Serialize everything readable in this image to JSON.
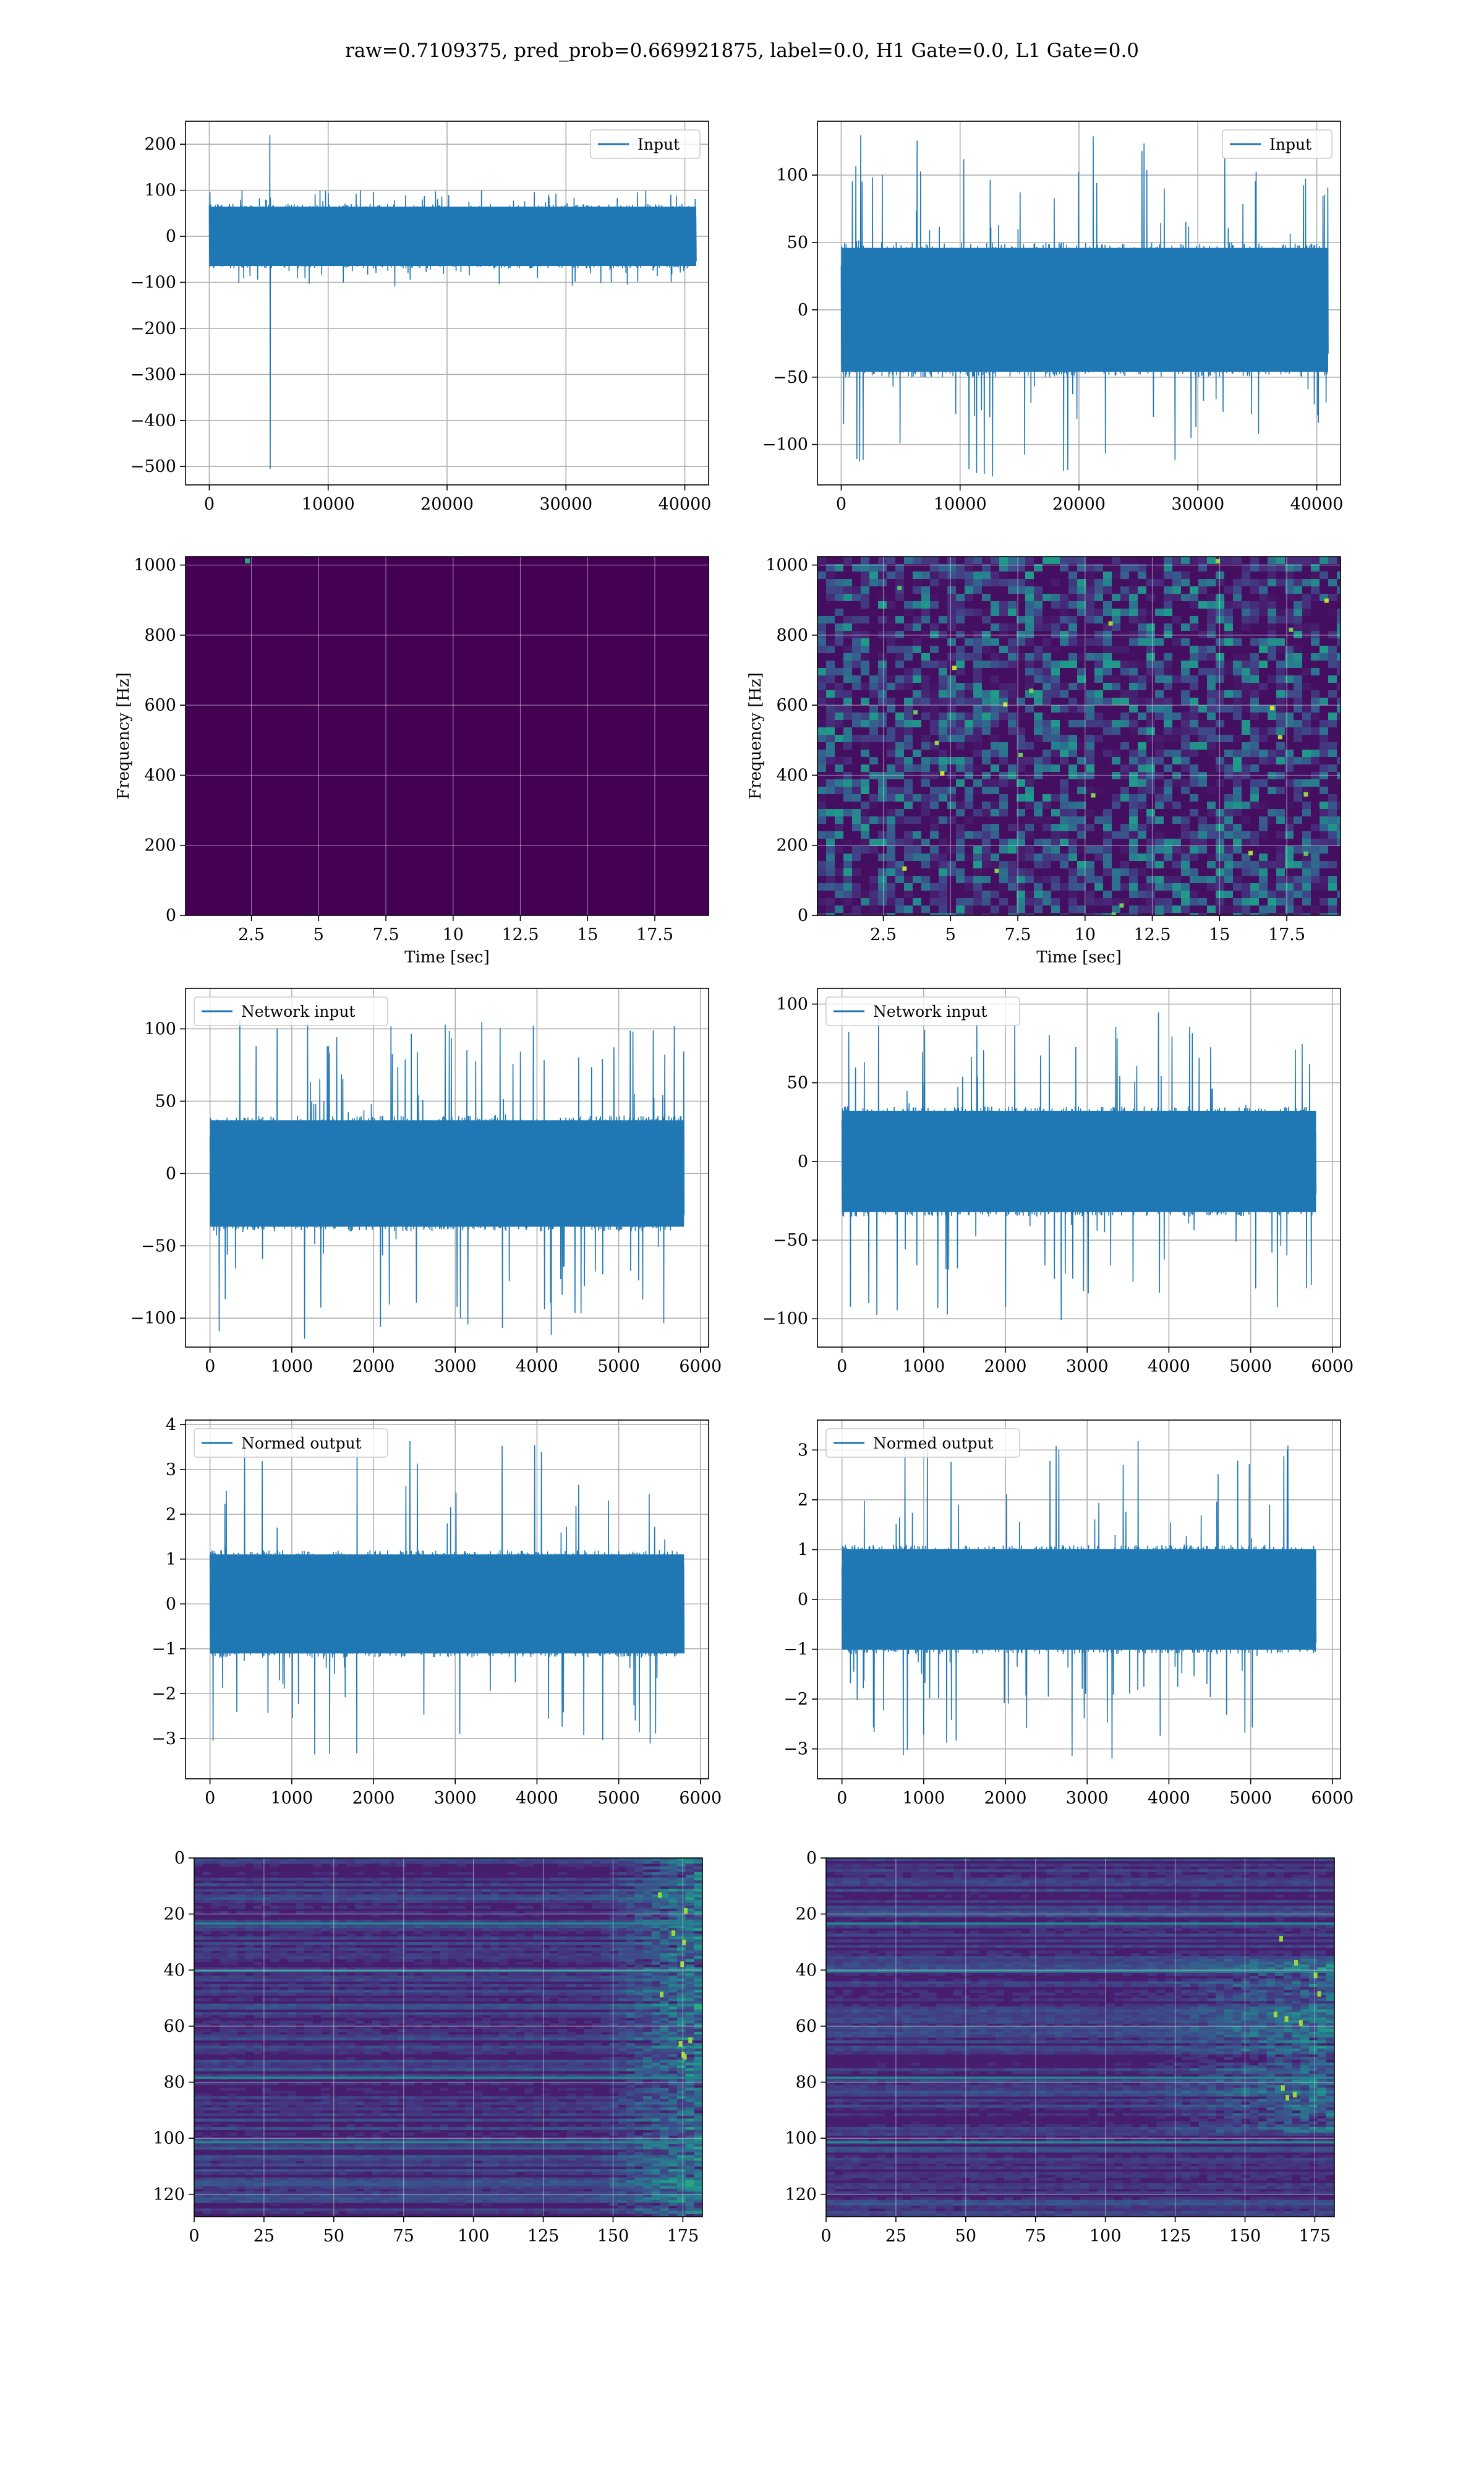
{
  "figure": {
    "suptitle": "raw=0.7109375, pred_prob=0.669921875, label=0.0, H1 Gate=0.0, L1 Gate=0.0"
  },
  "chart_data": [
    {
      "type": "line",
      "name": "row1-left-input",
      "legend": "Input",
      "legend_loc": "upper right",
      "xlim": [
        -2000,
        42000
      ],
      "ylim": [
        -540,
        250
      ],
      "xticks": [
        0,
        10000,
        20000,
        30000,
        40000
      ],
      "yticks": [
        -500,
        -400,
        -300,
        -200,
        -100,
        0,
        100,
        200
      ],
      "grid": true,
      "color": "#1f77b4",
      "signal": {
        "x_range": [
          0,
          40960
        ],
        "envelope_low": -70,
        "envelope_high": 70,
        "peak_max": 100,
        "peak_min": -110,
        "glitch": {
          "x": 5100,
          "max": 220,
          "min": -505
        }
      }
    },
    {
      "type": "line",
      "name": "row1-right-input",
      "legend": "Input",
      "legend_loc": "upper right",
      "xlim": [
        -2000,
        42000
      ],
      "ylim": [
        -130,
        140
      ],
      "xticks": [
        0,
        10000,
        20000,
        30000,
        40000
      ],
      "yticks": [
        -100,
        -50,
        0,
        50,
        100
      ],
      "grid": true,
      "color": "#1f77b4",
      "signal": {
        "x_range": [
          0,
          40960
        ],
        "envelope_low": -50,
        "envelope_high": 50,
        "peak_max": 130,
        "peak_min": -125
      }
    },
    {
      "type": "heatmap",
      "name": "row2-left-spectrogram",
      "xlabel": "Time [sec]",
      "ylabel": "Frequency [Hz]",
      "xlim": [
        0.05,
        19.5
      ],
      "ylim": [
        0,
        1024
      ],
      "xticks": [
        2.5,
        5.0,
        7.5,
        10.0,
        12.5,
        15.0,
        17.5
      ],
      "yticks": [
        0,
        200,
        400,
        600,
        800,
        1000
      ],
      "grid": true,
      "colormap": "viridis",
      "pattern": "near-uniform dark, faint bright spot near t=2.4 s, f=1010 Hz"
    },
    {
      "type": "heatmap",
      "name": "row2-right-spectrogram",
      "xlabel": "Time [sec]",
      "ylabel": "Frequency [Hz]",
      "xlim": [
        0.05,
        19.5
      ],
      "ylim": [
        0,
        1024
      ],
      "xticks": [
        2.5,
        5.0,
        7.5,
        10.0,
        12.5,
        15.0,
        17.5
      ],
      "yticks": [
        0,
        200,
        400,
        600,
        800,
        1000
      ],
      "grid": true,
      "colormap": "viridis",
      "pattern": "speckled noise across all frequencies"
    },
    {
      "type": "line",
      "name": "row3-left-network-input",
      "legend": "Network input",
      "legend_loc": "upper left",
      "xlim": [
        -300,
        6100
      ],
      "ylim": [
        -120,
        128
      ],
      "xticks": [
        0,
        1000,
        2000,
        3000,
        4000,
        5000,
        6000
      ],
      "yticks": [
        -100,
        -50,
        0,
        50,
        100
      ],
      "grid": true,
      "color": "#1f77b4",
      "signal": {
        "x_range": [
          0,
          5800
        ],
        "envelope_low": -40,
        "envelope_high": 40,
        "peak_max": 110,
        "peak_min": -115
      }
    },
    {
      "type": "line",
      "name": "row3-right-network-input",
      "legend": "Network input",
      "legend_loc": "upper left",
      "xlim": [
        -300,
        6100
      ],
      "ylim": [
        -118,
        110
      ],
      "xticks": [
        0,
        1000,
        2000,
        3000,
        4000,
        5000,
        6000
      ],
      "yticks": [
        -100,
        -50,
        0,
        50,
        100
      ],
      "grid": true,
      "color": "#1f77b4",
      "signal": {
        "x_range": [
          0,
          5800
        ],
        "envelope_low": -35,
        "envelope_high": 35,
        "peak_max": 100,
        "peak_min": -105
      }
    },
    {
      "type": "line",
      "name": "row4-left-normed-output",
      "legend": "Normed output",
      "legend_loc": "upper left",
      "xlim": [
        -300,
        6100
      ],
      "ylim": [
        -3.9,
        4.1
      ],
      "xticks": [
        0,
        1000,
        2000,
        3000,
        4000,
        5000,
        6000
      ],
      "yticks": [
        -3,
        -2,
        -1,
        0,
        1,
        2,
        3,
        4
      ],
      "grid": true,
      "color": "#1f77b4",
      "signal": {
        "x_range": [
          0,
          5800
        ],
        "envelope_low": -1.2,
        "envelope_high": 1.2,
        "peak_max": 3.7,
        "peak_min": -3.5
      }
    },
    {
      "type": "line",
      "name": "row4-right-normed-output",
      "legend": "Normed output",
      "legend_loc": "upper left",
      "xlim": [
        -300,
        6100
      ],
      "ylim": [
        -3.6,
        3.6
      ],
      "xticks": [
        0,
        1000,
        2000,
        3000,
        4000,
        5000,
        6000
      ],
      "yticks": [
        -3,
        -2,
        -1,
        0,
        1,
        2,
        3
      ],
      "grid": true,
      "color": "#1f77b4",
      "signal": {
        "x_range": [
          0,
          5800
        ],
        "envelope_low": -1.1,
        "envelope_high": 1.1,
        "peak_max": 3.4,
        "peak_min": -3.2
      }
    },
    {
      "type": "heatmap",
      "name": "row5-left-features",
      "xlim": [
        0,
        182
      ],
      "ylim": [
        128,
        0
      ],
      "xticks": [
        0,
        25,
        50,
        75,
        100,
        125,
        150,
        175
      ],
      "yticks": [
        0,
        20,
        40,
        60,
        80,
        100,
        120
      ],
      "grid": true,
      "colormap": "viridis",
      "pattern": "horizontal stripes, brighter activity toward x=150-180"
    },
    {
      "type": "heatmap",
      "name": "row5-right-features",
      "xlim": [
        0,
        182
      ],
      "ylim": [
        128,
        0
      ],
      "xticks": [
        0,
        25,
        50,
        75,
        100,
        125,
        150,
        175
      ],
      "yticks": [
        0,
        20,
        40,
        60,
        80,
        100,
        120
      ],
      "grid": true,
      "colormap": "viridis",
      "pattern": "horizontal stripes, brighter region x=110-180, y=40-95"
    }
  ]
}
